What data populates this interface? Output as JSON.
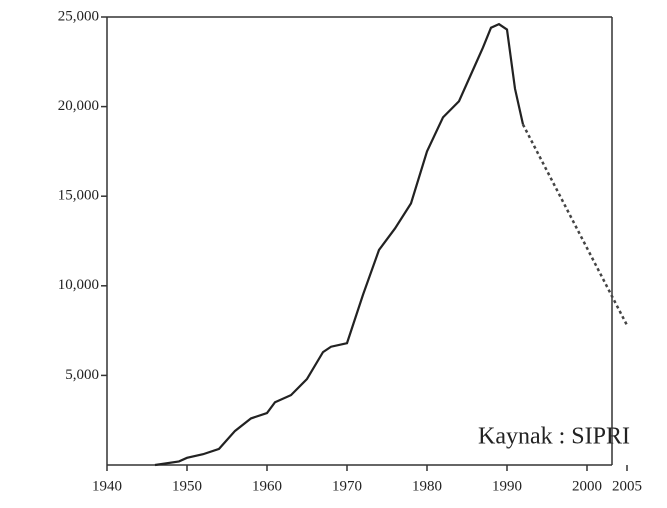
{
  "chart_data": {
    "type": "line",
    "annotation": "Kaynak : SIPRI",
    "xlim": [
      1940,
      2005
    ],
    "xticks": [
      1940,
      1950,
      1960,
      1970,
      1980,
      1990,
      2000,
      2005
    ],
    "ylim": [
      0,
      25000
    ],
    "yticks": [
      {
        "value": 5000,
        "label": "5,000"
      },
      {
        "value": 10000,
        "label": "10,000"
      },
      {
        "value": 15000,
        "label": "15,000"
      },
      {
        "value": 20000,
        "label": "20,000"
      },
      {
        "value": 25000,
        "label": "25,000"
      }
    ],
    "series": [
      {
        "color": "#222222",
        "dash": false,
        "x": [
          1946,
          1949,
          1950,
          1952,
          1954,
          1956,
          1958,
          1960,
          1961,
          1963,
          1965,
          1967,
          1968,
          1970,
          1972,
          1974,
          1976,
          1978,
          1980,
          1982,
          1984,
          1986,
          1987,
          1988,
          1989,
          1990,
          1991,
          1992
        ],
        "values": [
          0,
          200,
          400,
          600,
          900,
          1900,
          2600,
          2900,
          3500,
          3900,
          4800,
          6300,
          6600,
          6800,
          9500,
          12000,
          13200,
          14600,
          17500,
          19400,
          20300,
          22300,
          23300,
          24400,
          24600,
          24300,
          21000,
          19000
        ]
      },
      {
        "color": "#444444",
        "dash": true,
        "x": [
          1992,
          2005
        ],
        "values": [
          19000,
          7800
        ]
      }
    ]
  }
}
